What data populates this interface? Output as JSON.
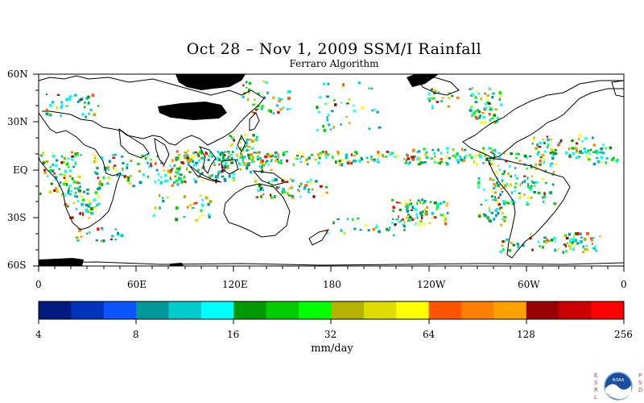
{
  "title": "Oct 28 – Nov 1, 2009 SSM/I Rainfall",
  "subtitle": "Ferraro Algorithm",
  "lat_labels": [
    "60N",
    "30N",
    "EQ",
    "30S",
    "60S"
  ],
  "lon_labels": [
    "0",
    "60E",
    "120E",
    "180",
    "120W",
    "60W",
    "0"
  ],
  "colorbar": {
    "tick_labels": [
      "4",
      "8",
      "16",
      "32",
      "64",
      "128",
      "256"
    ],
    "colors": [
      "#001a7f",
      "#0033bb",
      "#0a55ff",
      "#009999",
      "#00cccc",
      "#00ffff",
      "#009900",
      "#00cc00",
      "#00ff00",
      "#b3b300",
      "#dddd00",
      "#ffff00",
      "#ff5500",
      "#ff8000",
      "#ffa200",
      "#990000",
      "#cc0000",
      "#ff0000"
    ]
  },
  "units": "mm/day",
  "logo": {
    "left_text": "ESRL",
    "right_text": "PSD",
    "center_text": "NOAA"
  }
}
